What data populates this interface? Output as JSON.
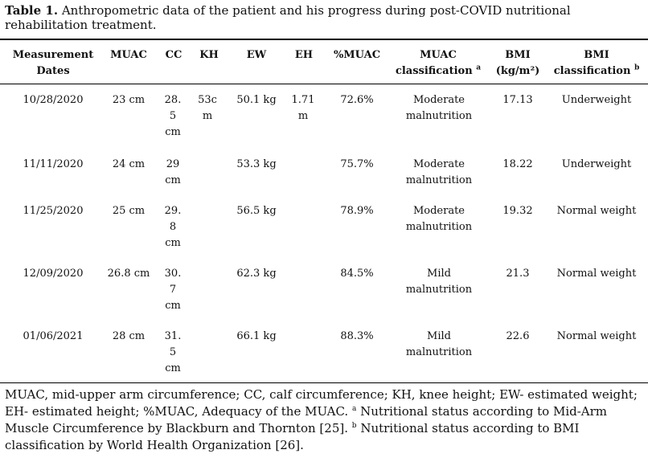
{
  "caption": {
    "label": "Table 1.",
    "text": "Anthropometric data of the patient and his progress during post-COVID nutritional rehabilitation treatment."
  },
  "table": {
    "headers": {
      "date": "Measurement Dates",
      "muac": "MUAC",
      "cc": "CC",
      "kh": "KH",
      "ew": "EW",
      "eh": "EH",
      "pmuac": "%MUAC",
      "muac_class": "MUAC classification",
      "muac_class_mark": "a",
      "bmi": "BMI",
      "bmi_unit": "(kg/m²)",
      "bmi_class": "BMI classification",
      "bmi_class_mark": "b"
    },
    "rows": [
      {
        "date": "10/28/2020",
        "muac": "23 cm",
        "cc": "28. 5 cm",
        "kh": "53c m",
        "ew": "50.1 kg",
        "eh": "1.71 m",
        "pmuac": "72.6%",
        "muac_class": "Moderate malnutrition",
        "bmi": "17.13",
        "bmi_class": "Underweight"
      },
      {
        "date": "11/11/2020",
        "muac": "24 cm",
        "cc": "29 cm",
        "kh": "",
        "ew": "53.3 kg",
        "eh": "",
        "pmuac": "75.7%",
        "muac_class": "Moderate malnutrition",
        "bmi": "18.22",
        "bmi_class": "Underweight"
      },
      {
        "date": "11/25/2020",
        "muac": "25 cm",
        "cc": "29. 8 cm",
        "kh": "",
        "ew": "56.5 kg",
        "eh": "",
        "pmuac": "78.9%",
        "muac_class": "Moderate malnutrition",
        "bmi": "19.32",
        "bmi_class": "Normal weight"
      },
      {
        "date": "12/09/2020",
        "muac": "26.8 cm",
        "cc": "30. 7 cm",
        "kh": "",
        "ew": "62.3 kg",
        "eh": "",
        "pmuac": "84.5%",
        "muac_class": "Mild malnutrition",
        "bmi": "21.3",
        "bmi_class": "Normal weight"
      },
      {
        "date": "01/06/2021",
        "muac": "28 cm",
        "cc": "31. 5 cm",
        "kh": "",
        "ew": "66.1 kg",
        "eh": "",
        "pmuac": "88.3%",
        "muac_class": "Mild malnutrition",
        "bmi": "22.6",
        "bmi_class": "Normal weight"
      }
    ]
  },
  "footnote": {
    "text1": "MUAC, mid-upper arm circumference; CC, calf circumference; KH, knee height; EW- estimated weight; EH- estimated height; %MUAC, Adequacy of the MUAC.",
    "mark_a": "a",
    "text2": "Nutritional status according to Mid-Arm Muscle Circumference by Blackburn and Thornton [25].",
    "mark_b": "b",
    "text3": "Nutritional status according to BMI classification by World Health Organization [26]."
  }
}
